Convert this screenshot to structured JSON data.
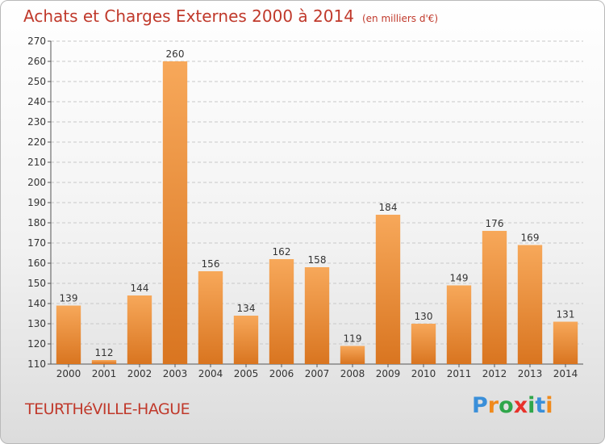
{
  "header": {
    "title": "Achats et Charges Externes 2000 à 2014",
    "unit": "(en milliers d'€)"
  },
  "footer": {
    "place": "TEURTHéVILLE-HAGUE",
    "logo_letters": [
      "P",
      "r",
      "o",
      "x",
      "i",
      "t",
      "i"
    ],
    "logo_colors": [
      "#3a8fd9",
      "#f08a1c",
      "#2fa64a",
      "#e8322a",
      "#2fa64a",
      "#3a8fd9",
      "#f08a1c"
    ]
  },
  "chart_data": {
    "type": "bar",
    "title": "Achats et Charges Externes 2000 à 2014",
    "subtitle": "(en milliers d'€)",
    "categories": [
      "2000",
      "2001",
      "2002",
      "2003",
      "2004",
      "2005",
      "2006",
      "2007",
      "2008",
      "2009",
      "2010",
      "2011",
      "2012",
      "2013",
      "2014"
    ],
    "values": [
      139,
      112,
      144,
      260,
      156,
      134,
      162,
      158,
      119,
      184,
      130,
      149,
      176,
      169,
      131
    ],
    "xlabel": "",
    "ylabel": "",
    "ylim": [
      110,
      270
    ],
    "yticks": [
      110,
      120,
      130,
      140,
      150,
      160,
      170,
      180,
      190,
      200,
      210,
      220,
      230,
      240,
      250,
      260,
      270
    ],
    "grid": true,
    "bar_color": "#f0963a",
    "legend": "none"
  }
}
